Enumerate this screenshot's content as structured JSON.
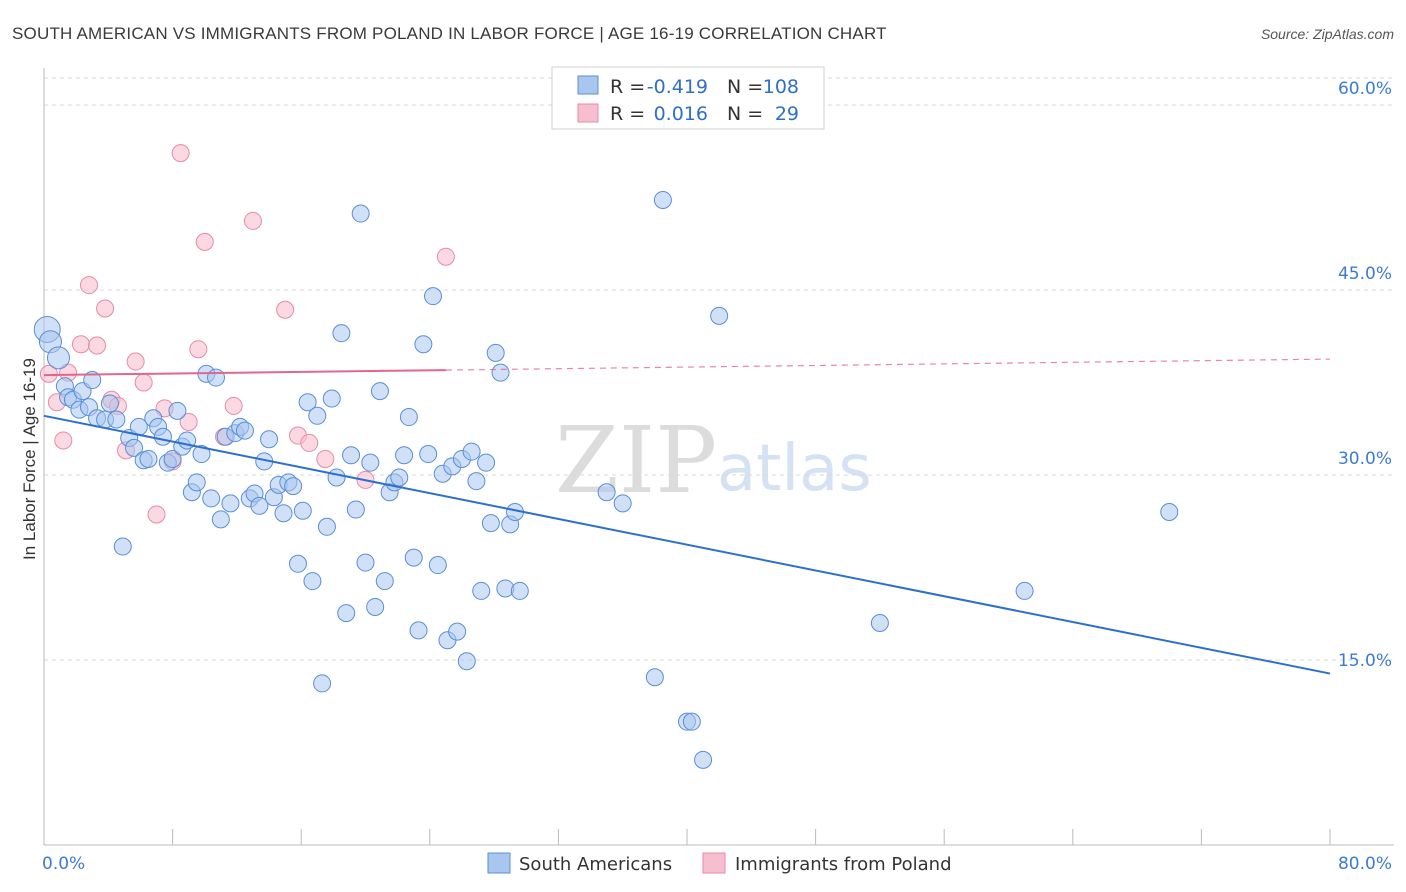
{
  "title": "SOUTH AMERICAN VS IMMIGRANTS FROM POLAND IN LABOR FORCE | AGE 16-19 CORRELATION CHART",
  "source": "Source: ZipAtlas.com",
  "watermark": {
    "zip": "ZIP",
    "atlas": "atlas"
  },
  "colors": {
    "blue_fill": "#a9c7ee",
    "blue_stroke": "#5a8fd6",
    "blue_line": "#2b6fcf",
    "pink_fill": "#f6bfd0",
    "pink_stroke": "#e88aa8",
    "pink_line": "#e3668c",
    "grid": "#d9d9d9",
    "tick_text": "#3d7bd0"
  },
  "legend": {
    "rows": [
      {
        "r_label": "R =",
        "r_value": "-0.419",
        "n_label": "N =",
        "n_value": "108"
      },
      {
        "r_label": "R =",
        "r_value": "0.016",
        "n_label": "N =",
        "n_value": "29"
      }
    ]
  },
  "bottom_legend": [
    "South Americans",
    "Immigrants from Poland"
  ],
  "chart_data": {
    "type": "scatter",
    "title": "SOUTH AMERICAN VS IMMIGRANTS FROM POLAND IN LABOR FORCE | AGE 16-19 CORRELATION CHART",
    "xlabel": "",
    "ylabel": "In Labor Force | Age 16-19",
    "xlim": [
      0,
      80
    ],
    "ylim": [
      0,
      63
    ],
    "x_tick_labels": [
      "0.0%",
      "80.0%"
    ],
    "y_ticks": [
      15,
      30,
      45,
      60
    ],
    "y_tick_labels": [
      "15.0%",
      "30.0%",
      "45.0%",
      "60.0%"
    ],
    "grid": true,
    "legend_position": "top-center",
    "series": [
      {
        "name": "South Americans",
        "trend": {
          "x": [
            0,
            80
          ],
          "y": [
            34.8,
            13.9
          ]
        },
        "points": [
          [
            0.2,
            41.8
          ],
          [
            0.4,
            40.8
          ],
          [
            0.9,
            39.5
          ],
          [
            1.3,
            37.2
          ],
          [
            1.5,
            36.3
          ],
          [
            1.8,
            36.1
          ],
          [
            2.2,
            35.3
          ],
          [
            2.4,
            36.8
          ],
          [
            2.8,
            35.5
          ],
          [
            3.0,
            37.7
          ],
          [
            3.3,
            34.6
          ],
          [
            3.8,
            34.5
          ],
          [
            4.1,
            35.8
          ],
          [
            4.5,
            34.5
          ],
          [
            4.9,
            24.2
          ],
          [
            5.3,
            33.0
          ],
          [
            5.6,
            32.2
          ],
          [
            5.9,
            33.9
          ],
          [
            6.2,
            31.2
          ],
          [
            6.5,
            31.3
          ],
          [
            6.8,
            34.6
          ],
          [
            7.1,
            33.9
          ],
          [
            7.4,
            33.1
          ],
          [
            7.7,
            31.0
          ],
          [
            8.0,
            31.3
          ],
          [
            8.3,
            35.2
          ],
          [
            8.6,
            32.3
          ],
          [
            8.9,
            32.8
          ],
          [
            9.2,
            28.6
          ],
          [
            9.5,
            29.4
          ],
          [
            9.8,
            31.7
          ],
          [
            10.1,
            38.2
          ],
          [
            10.4,
            28.1
          ],
          [
            10.7,
            37.9
          ],
          [
            11.0,
            26.4
          ],
          [
            11.3,
            33.1
          ],
          [
            11.6,
            27.7
          ],
          [
            11.9,
            33.4
          ],
          [
            12.2,
            33.9
          ],
          [
            12.5,
            33.6
          ],
          [
            12.8,
            28.1
          ],
          [
            13.1,
            28.5
          ],
          [
            13.4,
            27.5
          ],
          [
            13.7,
            31.1
          ],
          [
            14.0,
            32.9
          ],
          [
            14.3,
            28.2
          ],
          [
            14.6,
            29.2
          ],
          [
            14.9,
            26.9
          ],
          [
            15.2,
            29.4
          ],
          [
            15.5,
            29.1
          ],
          [
            15.8,
            22.8
          ],
          [
            16.1,
            27.1
          ],
          [
            16.4,
            35.9
          ],
          [
            16.7,
            21.4
          ],
          [
            17.0,
            34.8
          ],
          [
            17.3,
            13.1
          ],
          [
            17.6,
            25.8
          ],
          [
            17.9,
            36.2
          ],
          [
            18.2,
            29.8
          ],
          [
            18.5,
            41.5
          ],
          [
            18.8,
            18.8
          ],
          [
            19.1,
            31.6
          ],
          [
            19.4,
            27.2
          ],
          [
            19.7,
            51.2
          ],
          [
            20.0,
            22.9
          ],
          [
            20.3,
            31.0
          ],
          [
            20.6,
            19.3
          ],
          [
            20.9,
            36.8
          ],
          [
            21.2,
            21.4
          ],
          [
            21.5,
            28.6
          ],
          [
            21.8,
            29.4
          ],
          [
            22.1,
            29.8
          ],
          [
            22.4,
            31.6
          ],
          [
            22.7,
            34.7
          ],
          [
            23.0,
            23.3
          ],
          [
            23.3,
            17.4
          ],
          [
            23.6,
            40.6
          ],
          [
            23.9,
            31.7
          ],
          [
            24.2,
            44.5
          ],
          [
            24.5,
            22.7
          ],
          [
            24.8,
            30.1
          ],
          [
            25.1,
            16.6
          ],
          [
            25.4,
            30.7
          ],
          [
            25.7,
            17.3
          ],
          [
            26.0,
            31.3
          ],
          [
            26.3,
            14.9
          ],
          [
            26.6,
            31.9
          ],
          [
            26.9,
            29.5
          ],
          [
            27.2,
            20.6
          ],
          [
            27.5,
            31.0
          ],
          [
            27.8,
            26.1
          ],
          [
            28.1,
            39.9
          ],
          [
            28.4,
            38.3
          ],
          [
            28.7,
            20.8
          ],
          [
            29.0,
            26.0
          ],
          [
            29.3,
            27.0
          ],
          [
            29.6,
            20.6
          ],
          [
            35.0,
            28.6
          ],
          [
            36.0,
            27.7
          ],
          [
            38.0,
            13.6
          ],
          [
            38.5,
            52.3
          ],
          [
            40.0,
            10.0
          ],
          [
            40.3,
            10.0
          ],
          [
            41.0,
            6.9
          ],
          [
            42.0,
            42.9
          ],
          [
            52.0,
            18.0
          ],
          [
            61.0,
            20.6
          ],
          [
            70.0,
            27.0
          ]
        ]
      },
      {
        "name": "Immigrants from Poland",
        "trend": {
          "x": [
            0,
            80
          ],
          "y": [
            38.1,
            39.4
          ],
          "solid_until": 25
        },
        "points": [
          [
            0.3,
            38.2
          ],
          [
            0.8,
            35.9
          ],
          [
            1.2,
            32.8
          ],
          [
            1.5,
            38.3
          ],
          [
            2.3,
            40.6
          ],
          [
            2.8,
            45.4
          ],
          [
            3.3,
            40.5
          ],
          [
            3.8,
            43.5
          ],
          [
            4.2,
            36.1
          ],
          [
            4.6,
            35.6
          ],
          [
            5.1,
            32.0
          ],
          [
            5.7,
            39.2
          ],
          [
            6.2,
            37.5
          ],
          [
            7.0,
            26.8
          ],
          [
            7.5,
            35.4
          ],
          [
            8.0,
            31.1
          ],
          [
            8.5,
            56.1
          ],
          [
            9.0,
            34.3
          ],
          [
            9.6,
            40.2
          ],
          [
            10.0,
            48.9
          ],
          [
            11.2,
            33.1
          ],
          [
            11.8,
            35.6
          ],
          [
            13.0,
            50.6
          ],
          [
            15.0,
            43.4
          ],
          [
            15.8,
            33.2
          ],
          [
            16.5,
            32.6
          ],
          [
            17.5,
            31.3
          ],
          [
            20.0,
            29.6
          ],
          [
            25.0,
            47.7
          ]
        ]
      }
    ]
  }
}
